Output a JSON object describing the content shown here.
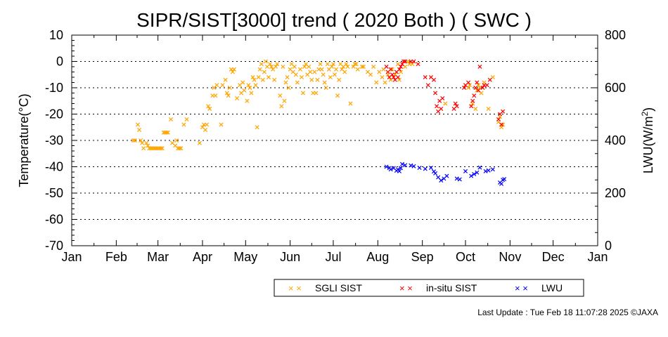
{
  "chart_data": {
    "type": "scatter",
    "title": "SIPR/SIST[3000] trend ( 2020 Both ) ( SWC )",
    "ylabel": "Temperature(°C)",
    "y2label_main": "LWU(W/m",
    "y2label_sup": "2",
    "y2label_end": ")",
    "ylim": [
      -70,
      10
    ],
    "y2lim": [
      0,
      800
    ],
    "yticks": [
      "10",
      "0",
      "-10",
      "-20",
      "-30",
      "-40",
      "-50",
      "-60",
      "-70"
    ],
    "y2ticks": [
      "800",
      "600",
      "400",
      "200",
      "0"
    ],
    "x_tick_labels": [
      "Jan",
      "Feb",
      "Mar",
      "Apr",
      "May",
      "Jun",
      "Jul",
      "Aug",
      "Sep",
      "Oct",
      "Nov",
      "Dec",
      "Jan"
    ],
    "x_tick_dates": [
      "2020-01-01",
      "2020-02-01",
      "2020-03-01",
      "2020-04-01",
      "2020-05-01",
      "2020-06-01",
      "2020-07-01",
      "2020-08-01",
      "2020-09-01",
      "2020-10-01",
      "2020-11-01",
      "2020-12-01",
      "2021-01-01"
    ],
    "grid": "horizontal dotted",
    "legend_placement": "bottom-right",
    "series": [
      {
        "name": "SGLI SIST",
        "color": "#ffa500",
        "axis": "left",
        "points": [
          [
            "2020-02-13",
            -30
          ],
          [
            "2020-02-14",
            -30
          ],
          [
            "2020-02-16",
            -24
          ],
          [
            "2020-02-17",
            -26
          ],
          [
            "2020-02-18",
            -30
          ],
          [
            "2020-02-19",
            -31
          ],
          [
            "2020-02-20",
            -33
          ],
          [
            "2020-02-22",
            -31
          ],
          [
            "2020-02-23",
            -32
          ],
          [
            "2020-02-24",
            -33
          ],
          [
            "2020-02-25",
            -33
          ],
          [
            "2020-02-26",
            -33
          ],
          [
            "2020-02-27",
            -33
          ],
          [
            "2020-02-28",
            -33
          ],
          [
            "2020-02-29",
            -33
          ],
          [
            "2020-03-01",
            -33
          ],
          [
            "2020-03-02",
            -33
          ],
          [
            "2020-03-03",
            -33
          ],
          [
            "2020-03-04",
            -33
          ],
          [
            "2020-03-05",
            -27
          ],
          [
            "2020-03-06",
            -27
          ],
          [
            "2020-03-07",
            -27
          ],
          [
            "2020-03-08",
            -27
          ],
          [
            "2020-03-10",
            -22
          ],
          [
            "2020-03-11",
            -31
          ],
          [
            "2020-03-13",
            -32
          ],
          [
            "2020-03-14",
            -30
          ],
          [
            "2020-03-15",
            -33
          ],
          [
            "2020-03-16",
            -33
          ],
          [
            "2020-03-17",
            -33
          ],
          [
            "2020-03-19",
            -24
          ],
          [
            "2020-03-21",
            -22
          ],
          [
            "2020-03-30",
            -31
          ],
          [
            "2020-04-01",
            -25
          ],
          [
            "2020-04-02",
            -24
          ],
          [
            "2020-04-03",
            -26
          ],
          [
            "2020-04-04",
            -24
          ],
          [
            "2020-04-05",
            -17
          ],
          [
            "2020-04-06",
            -18
          ],
          [
            "2020-04-08",
            -13
          ],
          [
            "2020-04-09",
            -10
          ],
          [
            "2020-04-10",
            -13
          ],
          [
            "2020-04-11",
            -9
          ],
          [
            "2020-04-14",
            -24
          ],
          [
            "2020-04-15",
            -9
          ],
          [
            "2020-04-17",
            -7
          ],
          [
            "2020-04-18",
            -12
          ],
          [
            "2020-04-19",
            -13
          ],
          [
            "2020-04-20",
            -10
          ],
          [
            "2020-04-21",
            -3
          ],
          [
            "2020-04-22",
            -4
          ],
          [
            "2020-04-23",
            -3
          ],
          [
            "2020-04-25",
            -14
          ],
          [
            "2020-04-27",
            -9
          ],
          [
            "2020-04-28",
            -12
          ],
          [
            "2020-04-29",
            -8
          ],
          [
            "2020-04-30",
            -11
          ],
          [
            "2020-05-02",
            -15
          ],
          [
            "2020-05-03",
            -9
          ],
          [
            "2020-05-04",
            -10
          ],
          [
            "2020-05-05",
            -12
          ],
          [
            "2020-05-06",
            -6
          ],
          [
            "2020-05-07",
            -7
          ],
          [
            "2020-05-08",
            -9
          ],
          [
            "2020-05-09",
            -25
          ],
          [
            "2020-05-10",
            -6
          ],
          [
            "2020-05-11",
            -3
          ],
          [
            "2020-05-12",
            -1
          ],
          [
            "2020-05-13",
            -7
          ],
          [
            "2020-05-14",
            -4
          ],
          [
            "2020-05-15",
            0
          ],
          [
            "2020-05-16",
            -2
          ],
          [
            "2020-05-17",
            -6
          ],
          [
            "2020-05-18",
            -1
          ],
          [
            "2020-05-19",
            -2
          ],
          [
            "2020-05-20",
            -3
          ],
          [
            "2020-05-21",
            -7
          ],
          [
            "2020-05-22",
            -2
          ],
          [
            "2020-05-23",
            -1
          ],
          [
            "2020-05-25",
            -13
          ],
          [
            "2020-05-26",
            -17
          ],
          [
            "2020-05-27",
            -2
          ],
          [
            "2020-05-28",
            -15
          ],
          [
            "2020-05-29",
            -8
          ],
          [
            "2020-05-30",
            -6
          ],
          [
            "2020-05-31",
            -10
          ],
          [
            "2020-06-01",
            -3
          ],
          [
            "2020-06-02",
            -1
          ],
          [
            "2020-06-03",
            -4
          ],
          [
            "2020-06-04",
            -2
          ],
          [
            "2020-06-05",
            -5
          ],
          [
            "2020-06-06",
            -8
          ],
          [
            "2020-06-08",
            -3
          ],
          [
            "2020-06-09",
            -6
          ],
          [
            "2020-06-10",
            -12
          ],
          [
            "2020-06-11",
            -2
          ],
          [
            "2020-06-12",
            -1
          ],
          [
            "2020-06-13",
            -5
          ],
          [
            "2020-06-14",
            -2
          ],
          [
            "2020-06-15",
            -4
          ],
          [
            "2020-06-16",
            -7
          ],
          [
            "2020-06-17",
            -12
          ],
          [
            "2020-06-18",
            -4
          ],
          [
            "2020-06-19",
            -12
          ],
          [
            "2020-06-20",
            -7
          ],
          [
            "2020-06-21",
            -3
          ],
          [
            "2020-06-22",
            -1
          ],
          [
            "2020-06-23",
            -3
          ],
          [
            "2020-06-24",
            -5
          ],
          [
            "2020-06-25",
            -8
          ],
          [
            "2020-06-26",
            -10
          ],
          [
            "2020-06-27",
            -1
          ],
          [
            "2020-06-28",
            -3
          ],
          [
            "2020-06-29",
            -6
          ],
          [
            "2020-06-30",
            -2
          ],
          [
            "2020-07-01",
            -1
          ],
          [
            "2020-07-02",
            -5
          ],
          [
            "2020-07-03",
            -3
          ],
          [
            "2020-07-04",
            -13
          ],
          [
            "2020-07-05",
            -7
          ],
          [
            "2020-07-06",
            -1
          ],
          [
            "2020-07-07",
            -3
          ],
          [
            "2020-07-08",
            -2
          ],
          [
            "2020-07-09",
            -4
          ],
          [
            "2020-07-10",
            -1
          ],
          [
            "2020-07-11",
            -2
          ],
          [
            "2020-07-13",
            -16
          ],
          [
            "2020-07-15",
            -2
          ],
          [
            "2020-07-16",
            -1
          ],
          [
            "2020-07-17",
            -1
          ],
          [
            "2020-07-18",
            -3
          ],
          [
            "2020-07-21",
            -2
          ],
          [
            "2020-07-22",
            -2
          ],
          [
            "2020-07-25",
            -4
          ],
          [
            "2020-07-27",
            -5
          ],
          [
            "2020-07-29",
            -2
          ],
          [
            "2020-07-31",
            -8
          ],
          [
            "2020-08-02",
            -4
          ],
          [
            "2020-08-04",
            -6
          ],
          [
            "2020-08-05",
            -3
          ],
          [
            "2020-08-06",
            -8
          ],
          [
            "2020-08-08",
            -5
          ],
          [
            "2020-08-10",
            -7
          ],
          [
            "2020-08-11",
            -3
          ],
          [
            "2020-08-13",
            -5
          ],
          [
            "2020-08-15",
            -1
          ],
          [
            "2020-08-16",
            -7
          ],
          [
            "2020-08-17",
            -4
          ],
          [
            "2020-08-20",
            -2
          ],
          [
            "2020-08-22",
            0
          ],
          [
            "2020-08-23",
            -1
          ],
          [
            "2020-08-25",
            -1
          ],
          [
            "2020-09-17",
            -16
          ],
          [
            "2020-10-03",
            -10
          ],
          [
            "2020-10-04",
            -9
          ],
          [
            "2020-10-06",
            -16
          ],
          [
            "2020-10-08",
            -18
          ],
          [
            "2020-10-09",
            -11
          ],
          [
            "2020-10-10",
            -9
          ],
          [
            "2020-10-11",
            -10
          ],
          [
            "2020-10-12",
            -12
          ],
          [
            "2020-10-14",
            -8
          ],
          [
            "2020-10-17",
            -18
          ],
          [
            "2020-10-20",
            -6
          ],
          [
            "2020-10-24",
            -23
          ],
          [
            "2020-10-25",
            -21
          ],
          [
            "2020-10-26",
            -25
          ],
          [
            "2020-10-27",
            -24
          ]
        ]
      },
      {
        "name": "in-situ SIST",
        "color": "#ff0000",
        "axis": "left",
        "points": [
          [
            "2020-08-07",
            -2
          ],
          [
            "2020-08-08",
            -4
          ],
          [
            "2020-08-09",
            -6
          ],
          [
            "2020-08-10",
            -3
          ],
          [
            "2020-08-11",
            -5
          ],
          [
            "2020-08-12",
            -6
          ],
          [
            "2020-08-13",
            -7
          ],
          [
            "2020-08-14",
            -4
          ],
          [
            "2020-08-15",
            -6
          ],
          [
            "2020-08-16",
            -3
          ],
          [
            "2020-08-17",
            -2
          ],
          [
            "2020-08-18",
            -1
          ],
          [
            "2020-08-19",
            0
          ],
          [
            "2020-08-20",
            0
          ],
          [
            "2020-08-24",
            0
          ],
          [
            "2020-08-26",
            0
          ],
          [
            "2020-08-29",
            -1
          ],
          [
            "2020-09-03",
            -6
          ],
          [
            "2020-09-05",
            -9
          ],
          [
            "2020-09-07",
            -6
          ],
          [
            "2020-09-09",
            -7
          ],
          [
            "2020-09-10",
            -12
          ],
          [
            "2020-09-11",
            -17
          ],
          [
            "2020-09-12",
            -19
          ],
          [
            "2020-09-13",
            -15
          ],
          [
            "2020-09-14",
            -18
          ],
          [
            "2020-09-15",
            -14
          ],
          [
            "2020-09-23",
            -18
          ],
          [
            "2020-09-24",
            -16
          ],
          [
            "2020-09-25",
            -17
          ],
          [
            "2020-09-30",
            -10
          ],
          [
            "2020-10-01",
            -9
          ],
          [
            "2020-10-03",
            -8
          ],
          [
            "2020-10-05",
            -17
          ],
          [
            "2020-10-06",
            -15
          ],
          [
            "2020-10-07",
            -13
          ],
          [
            "2020-10-08",
            -10
          ],
          [
            "2020-10-09",
            -8
          ],
          [
            "2020-10-10",
            -11
          ],
          [
            "2020-10-11",
            -2
          ],
          [
            "2020-10-13",
            -10
          ],
          [
            "2020-10-14",
            -9
          ],
          [
            "2020-10-16",
            -9
          ],
          [
            "2020-10-18",
            -7
          ],
          [
            "2020-10-24",
            -22
          ],
          [
            "2020-10-25",
            -20
          ],
          [
            "2020-10-26",
            -24
          ],
          [
            "2020-10-27",
            -19
          ]
        ]
      },
      {
        "name": "LWU",
        "color": "#0000ff",
        "axis": "right",
        "points": [
          [
            "2020-08-07",
            300
          ],
          [
            "2020-08-09",
            295
          ],
          [
            "2020-08-10",
            290
          ],
          [
            "2020-08-12",
            295
          ],
          [
            "2020-08-14",
            285
          ],
          [
            "2020-08-15",
            290
          ],
          [
            "2020-08-16",
            283
          ],
          [
            "2020-08-17",
            295
          ],
          [
            "2020-08-18",
            310
          ],
          [
            "2020-08-20",
            306
          ],
          [
            "2020-08-24",
            305
          ],
          [
            "2020-08-26",
            302
          ],
          [
            "2020-08-30",
            296
          ],
          [
            "2020-09-03",
            292
          ],
          [
            "2020-09-07",
            296
          ],
          [
            "2020-09-09",
            282
          ],
          [
            "2020-09-10",
            275
          ],
          [
            "2020-09-12",
            260
          ],
          [
            "2020-09-14",
            248
          ],
          [
            "2020-09-16",
            255
          ],
          [
            "2020-09-18",
            265
          ],
          [
            "2020-09-25",
            255
          ],
          [
            "2020-09-27",
            252
          ],
          [
            "2020-10-01",
            283
          ],
          [
            "2020-10-05",
            265
          ],
          [
            "2020-10-07",
            272
          ],
          [
            "2020-10-09",
            278
          ],
          [
            "2020-10-11",
            297
          ],
          [
            "2020-10-15",
            283
          ],
          [
            "2020-10-17",
            286
          ],
          [
            "2020-10-20",
            290
          ],
          [
            "2020-10-25",
            240
          ],
          [
            "2020-10-26",
            235
          ],
          [
            "2020-10-27",
            250
          ],
          [
            "2020-10-28",
            253
          ]
        ]
      }
    ]
  },
  "legend": {
    "items": [
      {
        "label": "SGLI SIST",
        "color": "#ffa500"
      },
      {
        "label": "in-situ SIST",
        "color": "#ff0000"
      },
      {
        "label": "LWU",
        "color": "#0000ff"
      }
    ]
  },
  "footer": {
    "text": "Last Update : Tue Feb 18 11:07:28 2025 ©JAXA"
  }
}
